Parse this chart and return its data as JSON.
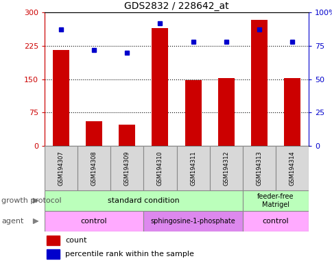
{
  "title": "GDS2832 / 228642_at",
  "samples": [
    "GSM194307",
    "GSM194308",
    "GSM194309",
    "GSM194310",
    "GSM194311",
    "GSM194312",
    "GSM194313",
    "GSM194314"
  ],
  "counts": [
    215,
    55,
    48,
    265,
    147,
    152,
    283,
    152
  ],
  "percentiles": [
    87,
    72,
    70,
    92,
    78,
    78,
    87,
    78
  ],
  "ylim_left": [
    0,
    300
  ],
  "ylim_right": [
    0,
    100
  ],
  "yticks_left": [
    0,
    75,
    150,
    225,
    300
  ],
  "yticks_right": [
    0,
    25,
    50,
    75,
    100
  ],
  "bar_color": "#cc0000",
  "dot_color": "#0000cc",
  "bar_width": 0.5,
  "growth_protocol_groups": [
    {
      "label": "standard condition",
      "span": [
        0,
        6
      ],
      "color": "#bbffbb"
    },
    {
      "label": "feeder-free\nMatrigel",
      "span": [
        6,
        8
      ],
      "color": "#bbffbb"
    }
  ],
  "agent_groups": [
    {
      "label": "control",
      "span": [
        0,
        3
      ],
      "color": "#ffaaff"
    },
    {
      "label": "sphingosine-1-phosphate",
      "span": [
        3,
        6
      ],
      "color": "#dd88ee"
    },
    {
      "label": "control",
      "span": [
        6,
        8
      ],
      "color": "#ffaaff"
    }
  ],
  "legend_count_label": "count",
  "legend_pct_label": "percentile rank within the sample",
  "growth_protocol_label": "growth protocol",
  "agent_label": "agent",
  "sample_bg_color": "#d8d8d8",
  "fig_width": 4.85,
  "fig_height": 3.84,
  "dpi": 100
}
